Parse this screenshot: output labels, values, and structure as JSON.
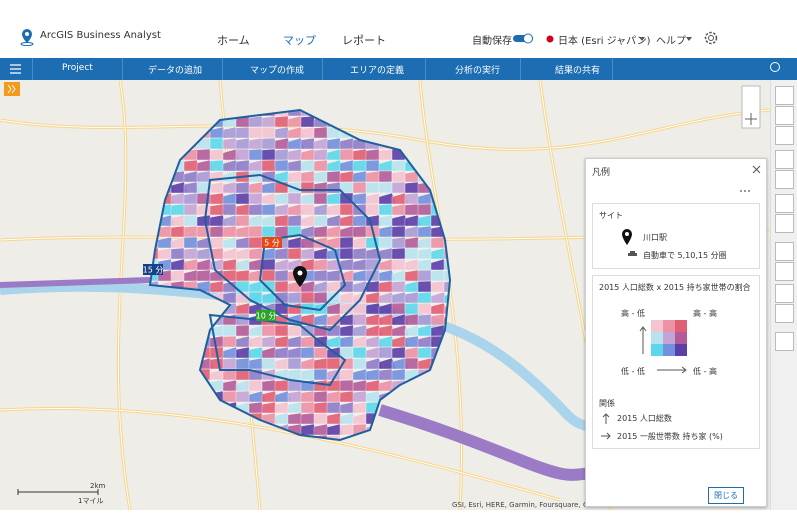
{
  "header": {
    "app_name": "ArcGIS Business Analyst",
    "nav": [
      "ホーム",
      "マップ",
      "レポート"
    ],
    "autosave": "自動保存",
    "region": "日本 (Esri ジャパン)",
    "help": "ヘルプ"
  },
  "toolbar": {
    "items": [
      "Project",
      "データの追加",
      "マップの作成",
      "エリアの定義",
      "分析の実行",
      "結果の共有"
    ]
  },
  "map": {
    "drive_time_labels": [
      "5 分",
      "10 分",
      "15 分"
    ],
    "scale": {
      "km": "2km",
      "mile": "1マイル"
    },
    "attribution": "GSI, Esri, HERE, Garmin, Foursquare, G"
  },
  "legend": {
    "title": "凡例",
    "site": {
      "heading": "サイト",
      "name": "川口駅",
      "description": "自動車で 5,10,15 分圏"
    },
    "layer": {
      "title": "2015 人口総数 x 2015 持ち家世帯の割合",
      "corner_labels": [
        "高 - 低",
        "高 - 高",
        "低 - 低",
        "低 - 高"
      ],
      "relationship_heading": "関係",
      "relationships": [
        "2015 人口総数",
        "2015 一般世帯数 持ち家 (%)"
      ]
    },
    "close_button": "閉じる"
  }
}
